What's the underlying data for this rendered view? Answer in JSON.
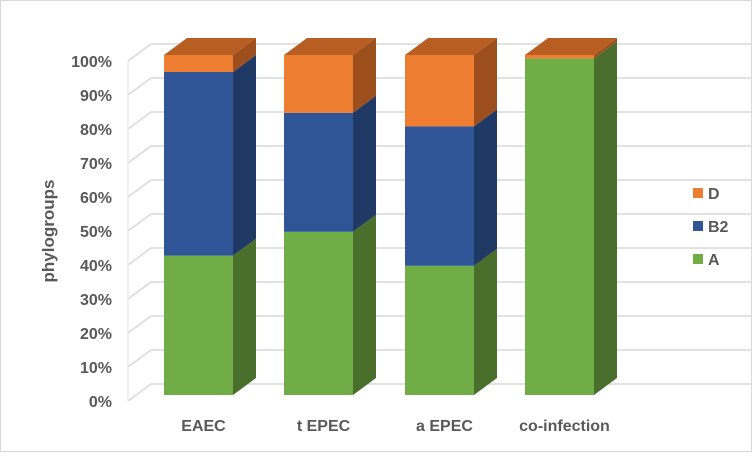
{
  "chart_data": {
    "type": "bar",
    "stacked": true,
    "three_d": true,
    "categories": [
      "EAEC",
      "t EPEC",
      "a EPEC",
      "co-infection"
    ],
    "series": [
      {
        "name": "A",
        "color": "#70AD47",
        "side": "#4A6F2C",
        "top": "#8CC063",
        "values": [
          41,
          48,
          38,
          99
        ]
      },
      {
        "name": "B2",
        "color": "#2F5597",
        "side": "#1F3864",
        "top": "#3E68B0",
        "values": [
          54,
          35,
          41,
          0
        ]
      },
      {
        "name": "D",
        "color": "#ED7D31",
        "side": "#9C4F1D",
        "top": "#B85E22",
        "values": [
          5,
          17,
          21,
          1
        ]
      }
    ],
    "title": "",
    "xlabel": "",
    "ylabel": "phylogroups",
    "ylim": [
      0,
      100
    ],
    "yticks": [
      "0%",
      "10%",
      "20%",
      "30%",
      "40%",
      "50%",
      "60%",
      "70%",
      "80%",
      "90%",
      "100%"
    ],
    "grid": true,
    "legend_position": "right",
    "legend_order": [
      "D",
      "B2",
      "A"
    ]
  }
}
